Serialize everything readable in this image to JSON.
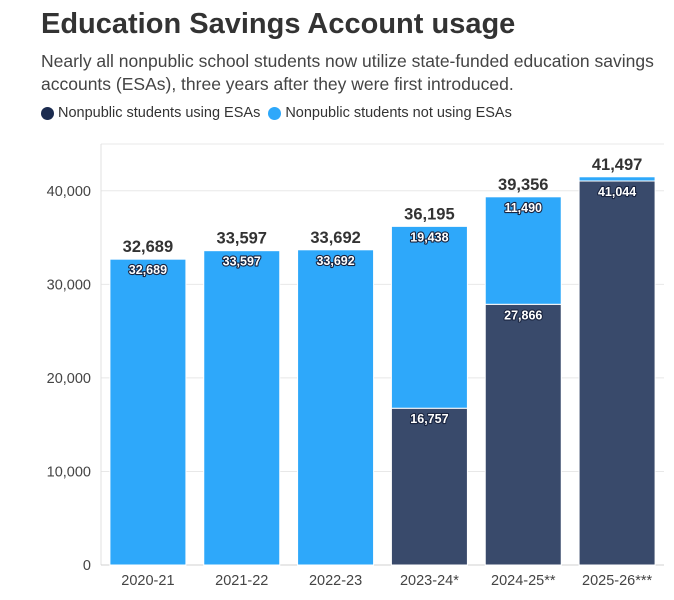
{
  "chart_data": {
    "type": "bar",
    "stacked": true,
    "title": "Education Savings Account usage",
    "subtitle": "Nearly all nonpublic school students now utilize state-funded education savings accounts (ESAs), three years after they were first introduced.",
    "categories": [
      "2020-21",
      "2021-22",
      "2022-23",
      "2023-24*",
      "2024-25**",
      "2025-26***"
    ],
    "series": [
      {
        "name": "Nonpublic students using ESAs",
        "color": "#394a6b",
        "values": [
          0,
          0,
          0,
          16757,
          27866,
          41044
        ],
        "labels": [
          "",
          "",
          "",
          "16,757",
          "27,866",
          "41,044"
        ]
      },
      {
        "name": "Nonpublic students not using ESAs",
        "color": "#2ea8fa",
        "values": [
          32689,
          33597,
          33692,
          19438,
          11490,
          453
        ],
        "labels": [
          "32,689",
          "33,597",
          "33,692",
          "19,438",
          "11,490",
          ""
        ]
      }
    ],
    "totals": [
      "32,689",
      "33,597",
      "33,692",
      "36,195",
      "39,356",
      "41,497"
    ],
    "yticks": [
      0,
      10000,
      20000,
      30000,
      40000
    ],
    "ytick_labels": [
      "0",
      "10,000",
      "20,000",
      "30,000",
      "40,000"
    ],
    "ylim": [
      0,
      45000
    ],
    "legend_position": "top-left",
    "grid": true
  }
}
